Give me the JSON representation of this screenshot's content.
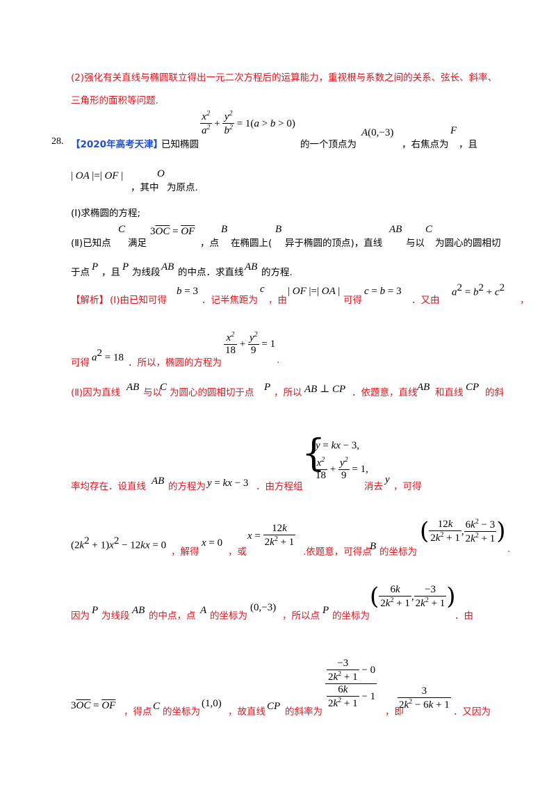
{
  "intro_line1": "(2)强化有关直线与椭圆联立得出一元二次方程后的运算能力，重视根与系数之间的关系、弦长、斜率、",
  "intro_line2": "三角形的面积等问题.",
  "problem": {
    "number": "28.",
    "source": "【2020年高考天津】",
    "text1": "已知椭圆",
    "text2": "的一个顶点为",
    "text3": "，右焦点为",
    "text4": "，且",
    "text5": "，其中",
    "text6": "为原点.",
    "part1": "(Ⅰ)求椭圆的方程;",
    "part2_a": "(Ⅱ)已知点",
    "part2_b": "满足",
    "part2_c": "，点",
    "part2_d": "在椭圆上(",
    "part2_e": "异于椭圆的顶点)，直线",
    "part2_f": "与以",
    "part2_g": "为圆心的圆相切",
    "part2_h": "于点",
    "part2_i": "，且",
    "part2_j": "为线段",
    "part2_k": "的中点．求直线",
    "part2_l": "的方程."
  },
  "solution": {
    "tag": "【解析】",
    "s1a": "(Ⅰ)由已知可得",
    "s1b": "．记半焦距为",
    "s1c": "，由",
    "s1d": "可得",
    "s1e": "．又由",
    "s1f": "，",
    "s2a": "可得",
    "s2b": "．所以，椭圆的方程为",
    "s2c": ".",
    "s3": "(Ⅱ)因为直线",
    "s3b": "与以",
    "s3c": "为圆心的圆相切于点",
    "s3d": "，所以",
    "s3e": "．依题意，直线",
    "s3f": "和直线",
    "s3g": "的斜",
    "s4a": "率均存在．设直线",
    "s4b": "的方程为",
    "s4c": "．由方程组",
    "s4d": "消去",
    "s4e": "，可得",
    "s5a": "，解得",
    "s5b": "，或",
    "s5c": ".依题意，可得点",
    "s5d": "的坐标为",
    "s5e": ".",
    "s6a": "因为",
    "s6b": "为线段",
    "s6c": "的中点，点",
    "s6d": "的坐标为",
    "s6e": "，所以点",
    "s6f": "的坐标为",
    "s6g": "．由",
    "s7a": "，得点",
    "s7b": "的坐标为",
    "s7c": "，故直线",
    "s7d": "的斜率为",
    "s7e": "，即",
    "s7f": "．又因为"
  }
}
